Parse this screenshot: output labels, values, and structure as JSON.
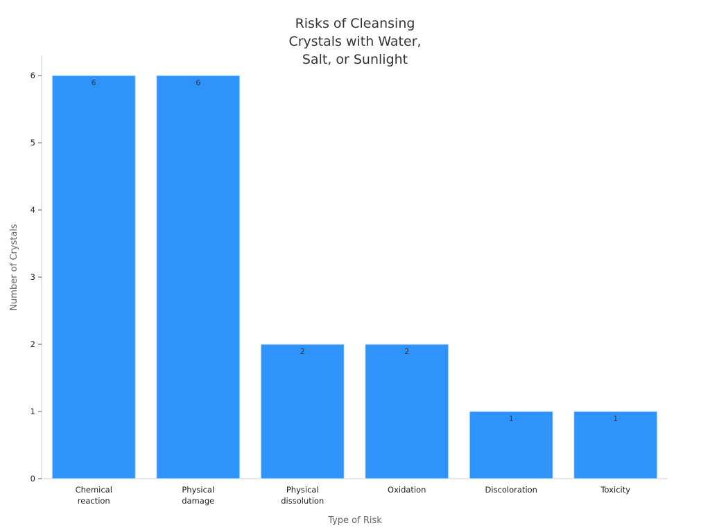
{
  "chart_data": {
    "type": "bar",
    "title": [
      "Risks of Cleansing",
      "Crystals with Water,",
      "Salt, or Sunlight"
    ],
    "xlabel": "Type of Risk",
    "ylabel": "Number of Crystals",
    "categories": [
      [
        "Chemical",
        "reaction"
      ],
      [
        "Physical",
        "damage"
      ],
      [
        "Physical",
        "dissolution"
      ],
      [
        "Oxidation"
      ],
      [
        "Discoloration"
      ],
      [
        "Toxicity"
      ]
    ],
    "values": [
      6,
      6,
      2,
      2,
      1,
      1
    ],
    "data_labels": [
      "6",
      "6",
      "2",
      "2",
      "1",
      "1"
    ],
    "ylim": [
      0,
      6.3
    ],
    "yticks": [
      0,
      1,
      2,
      3,
      4,
      5,
      6
    ],
    "grid": false,
    "bar_color": "#2e93fa",
    "bar_edge_color": "#cfe4fb",
    "axis_color": "#cccccc"
  }
}
